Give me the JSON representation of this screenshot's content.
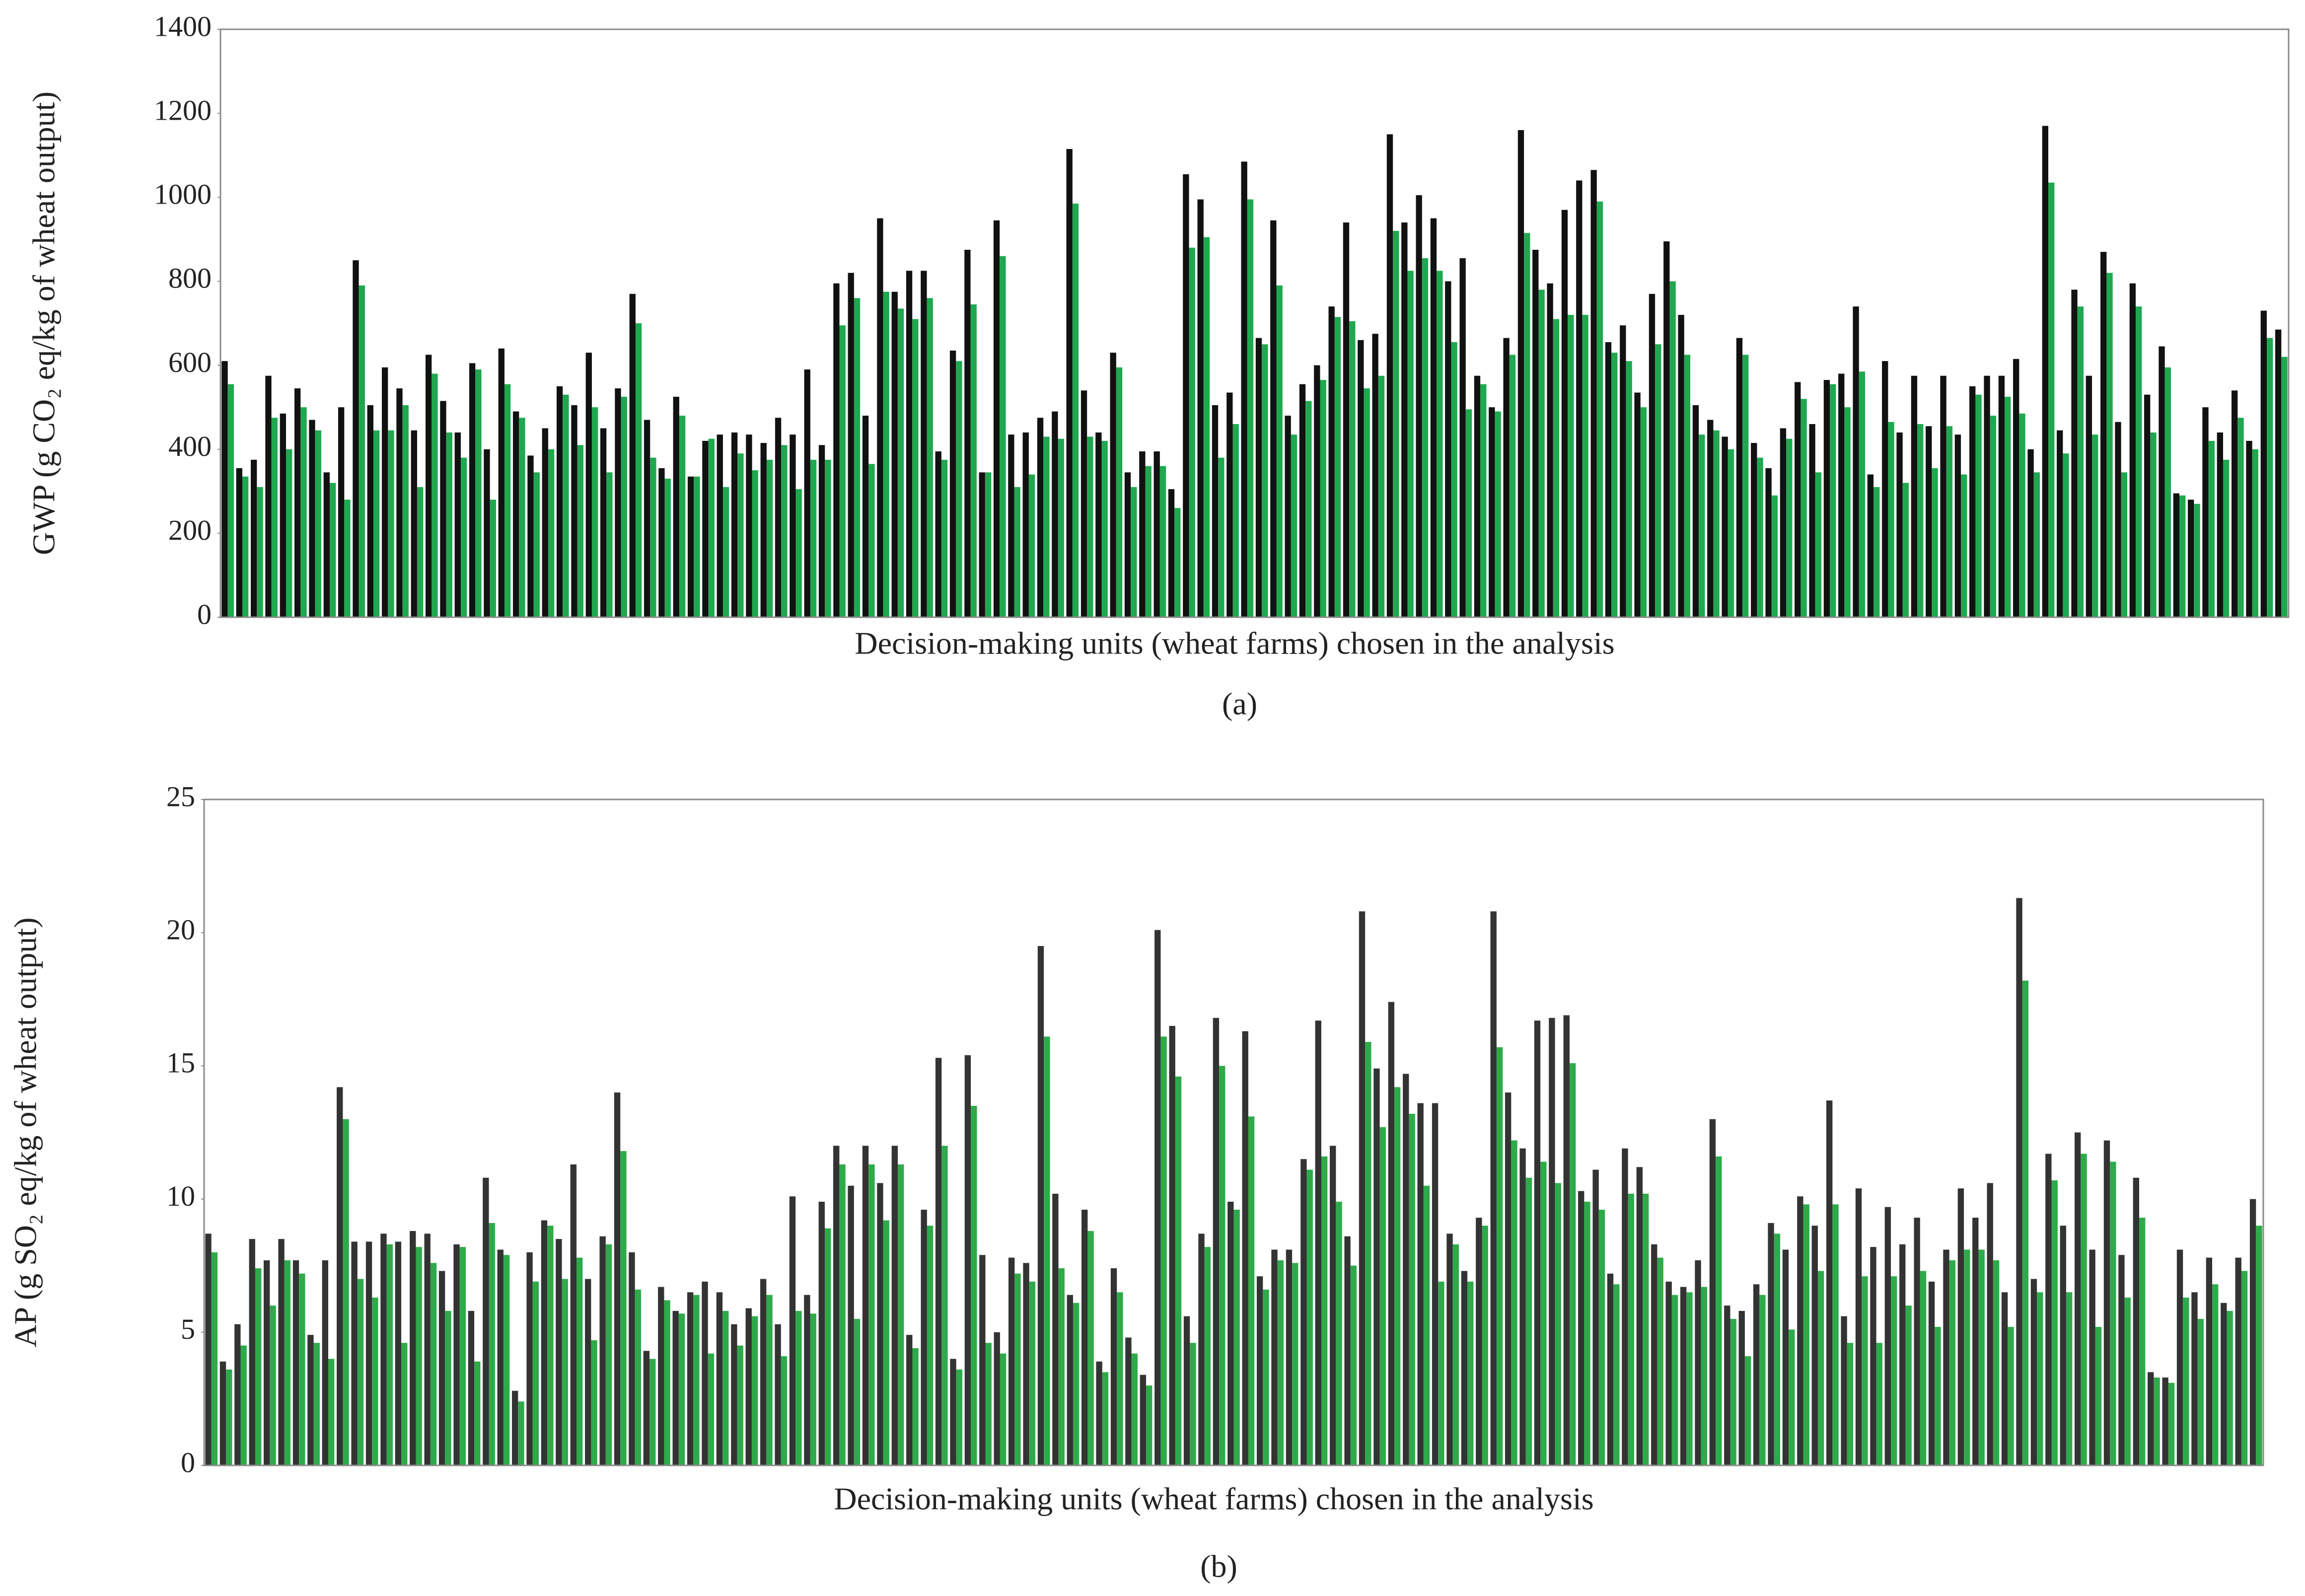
{
  "chart_data": [
    {
      "type": "bar",
      "panel_label": "(a)",
      "xlabel": "Decision-making units (wheat farms) chosen in the analysis",
      "ylabel": "GWP (g CO₂ eq/kg of wheat output)",
      "categories": [
        null,
        null,
        null,
        null,
        null,
        null,
        null,
        null,
        null,
        null,
        null,
        null,
        null,
        null,
        null,
        null,
        null,
        null,
        null,
        null,
        null,
        null,
        null,
        null,
        null,
        null,
        null,
        null,
        null,
        null,
        null,
        null,
        null,
        null,
        null,
        null,
        null,
        null,
        null,
        null,
        null,
        null,
        null,
        null,
        null,
        null,
        null,
        null,
        null,
        null,
        null,
        null,
        null,
        null,
        null,
        null,
        null,
        null,
        null,
        null,
        null,
        null,
        null,
        null,
        null,
        null,
        null,
        null,
        null,
        null,
        null,
        null,
        null,
        null,
        null,
        null,
        null,
        null,
        null,
        null,
        null,
        null,
        null,
        null,
        null,
        null,
        null,
        null,
        null,
        null,
        null,
        null,
        null,
        null,
        null,
        null,
        null,
        null,
        null,
        null,
        null,
        null,
        null,
        null,
        null,
        null,
        null,
        null,
        null,
        null,
        null,
        null,
        null,
        null,
        null,
        null,
        null,
        null,
        null,
        null,
        null,
        null,
        null,
        null,
        null,
        null,
        null,
        null,
        null,
        null,
        null,
        null,
        null,
        null,
        null,
        null,
        null,
        null,
        null,
        null,
        null,
        null
      ],
      "series": [
        {
          "color": "#111111",
          "values": [
            610,
            355,
            375,
            575,
            485,
            545,
            470,
            345,
            500,
            850,
            505,
            595,
            545,
            445,
            625,
            515,
            440,
            605,
            400,
            640,
            490,
            385,
            450,
            550,
            505,
            630,
            450,
            545,
            770,
            470,
            355,
            525,
            335,
            420,
            435,
            440,
            435,
            415,
            475,
            435,
            590,
            410,
            795,
            820,
            480,
            950,
            775,
            825,
            825,
            395,
            635,
            875,
            345,
            945,
            435,
            440,
            475,
            490,
            1115,
            540,
            440,
            630,
            345,
            395,
            395,
            305,
            1055,
            995,
            505,
            535,
            1085,
            665,
            945,
            480,
            555,
            600,
            740,
            940,
            660,
            675,
            1150,
            940,
            1005,
            950,
            800,
            855,
            575,
            500,
            665,
            1160,
            875,
            795,
            970,
            1040,
            1065,
            655,
            695,
            535,
            770,
            895,
            720,
            505,
            470,
            430,
            665,
            415,
            355,
            450,
            560,
            460,
            565,
            580,
            740,
            340,
            610,
            440,
            575,
            455,
            575,
            435,
            550,
            575,
            575,
            615,
            400,
            1170,
            445,
            780,
            575,
            870,
            465,
            795,
            530,
            645,
            295,
            280,
            500,
            440,
            540,
            420,
            730,
            685
          ]
        },
        {
          "color": "#1fa84f",
          "values": [
            555,
            335,
            310,
            475,
            400,
            500,
            445,
            320,
            280,
            790,
            445,
            445,
            505,
            310,
            580,
            440,
            380,
            590,
            280,
            555,
            475,
            345,
            400,
            530,
            410,
            500,
            345,
            525,
            700,
            380,
            330,
            480,
            335,
            425,
            310,
            390,
            350,
            375,
            410,
            305,
            375,
            375,
            695,
            760,
            365,
            775,
            735,
            710,
            760,
            375,
            610,
            745,
            345,
            860,
            310,
            340,
            430,
            425,
            985,
            430,
            420,
            595,
            310,
            360,
            360,
            260,
            880,
            905,
            380,
            460,
            995,
            650,
            790,
            435,
            515,
            565,
            715,
            705,
            545,
            575,
            920,
            825,
            855,
            825,
            655,
            495,
            555,
            490,
            625,
            915,
            780,
            710,
            720,
            720,
            990,
            630,
            610,
            500,
            650,
            800,
            625,
            435,
            445,
            400,
            625,
            380,
            290,
            425,
            520,
            345,
            555,
            500,
            585,
            310,
            465,
            320,
            460,
            355,
            455,
            340,
            530,
            480,
            525,
            485,
            345,
            1035,
            390,
            740,
            435,
            820,
            345,
            740,
            440,
            595,
            290,
            270,
            420,
            375,
            475,
            400,
            665,
            620
          ]
        }
      ],
      "ylim": [
        0,
        1400
      ],
      "yticks": [
        0,
        200,
        400,
        600,
        800,
        1000,
        1200,
        1400
      ]
    },
    {
      "type": "bar",
      "panel_label": "(b)",
      "xlabel": "Decision-making units (wheat farms) chosen in the analysis",
      "ylabel": "AP (g SO₂ eq/kg of wheat output)",
      "categories": [
        null,
        null,
        null,
        null,
        null,
        null,
        null,
        null,
        null,
        null,
        null,
        null,
        null,
        null,
        null,
        null,
        null,
        null,
        null,
        null,
        null,
        null,
        null,
        null,
        null,
        null,
        null,
        null,
        null,
        null,
        null,
        null,
        null,
        null,
        null,
        null,
        null,
        null,
        null,
        null,
        null,
        null,
        null,
        null,
        null,
        null,
        null,
        null,
        null,
        null,
        null,
        null,
        null,
        null,
        null,
        null,
        null,
        null,
        null,
        null,
        null,
        null,
        null,
        null,
        null,
        null,
        null,
        null,
        null,
        null,
        null,
        null,
        null,
        null,
        null,
        null,
        null,
        null,
        null,
        null,
        null,
        null,
        null,
        null,
        null,
        null,
        null,
        null,
        null,
        null,
        null,
        null,
        null,
        null,
        null,
        null,
        null,
        null,
        null,
        null,
        null,
        null,
        null,
        null,
        null,
        null,
        null,
        null,
        null,
        null,
        null,
        null,
        null,
        null,
        null,
        null,
        null,
        null,
        null,
        null,
        null,
        null,
        null,
        null,
        null,
        null,
        null,
        null,
        null,
        null,
        null,
        null,
        null,
        null,
        null,
        null,
        null,
        null,
        null,
        null,
        null
      ],
      "series": [
        {
          "color": "#333333",
          "values": [
            8.7,
            3.9,
            5.3,
            8.5,
            7.7,
            8.5,
            7.7,
            4.9,
            7.7,
            14.2,
            8.4,
            8.4,
            8.7,
            8.4,
            8.8,
            8.7,
            7.3,
            8.3,
            5.8,
            10.8,
            8.1,
            2.8,
            8.0,
            9.2,
            8.5,
            11.3,
            7.0,
            8.6,
            14.0,
            8.0,
            4.3,
            6.7,
            5.8,
            6.5,
            6.9,
            6.5,
            5.3,
            5.9,
            7.0,
            5.3,
            10.1,
            6.4,
            9.9,
            12.0,
            10.5,
            12.0,
            10.6,
            12.0,
            4.9,
            9.6,
            15.3,
            4.0,
            15.4,
            7.9,
            5.0,
            7.8,
            7.6,
            19.5,
            10.2,
            6.4,
            9.6,
            3.9,
            7.4,
            4.8,
            3.4,
            20.1,
            16.5,
            5.6,
            8.7,
            16.8,
            9.9,
            16.3,
            7.1,
            8.1,
            8.1,
            11.5,
            16.7,
            12.0,
            8.6,
            20.8,
            14.9,
            17.4,
            14.7,
            13.6,
            13.6,
            8.7,
            7.3,
            9.3,
            20.8,
            14.0,
            11.9,
            16.7,
            16.8,
            16.9,
            10.3,
            11.1,
            7.2,
            11.9,
            11.2,
            8.3,
            6.9,
            6.7,
            7.7,
            13.0,
            6.0,
            5.8,
            6.8,
            9.1,
            8.1,
            10.1,
            9.0,
            13.7,
            5.6,
            10.4,
            8.2,
            9.7,
            8.3,
            9.3,
            6.9,
            8.1,
            10.4,
            9.3,
            10.6,
            6.5,
            21.3,
            7.0,
            11.7,
            9.0,
            12.5,
            8.1,
            12.2,
            7.9,
            10.8,
            3.5,
            3.3,
            8.1,
            6.5,
            7.8,
            6.1,
            7.8,
            10.0
          ]
        },
        {
          "color": "#2eaa4a",
          "values": [
            8.0,
            3.6,
            4.5,
            7.4,
            6.0,
            7.7,
            7.2,
            4.6,
            4.0,
            13.0,
            7.0,
            6.3,
            8.3,
            4.6,
            8.2,
            7.6,
            5.8,
            8.2,
            3.9,
            9.1,
            7.9,
            2.4,
            6.9,
            9.0,
            7.0,
            7.8,
            4.7,
            8.3,
            11.8,
            6.6,
            4.0,
            6.2,
            5.7,
            6.4,
            4.2,
            5.8,
            4.5,
            5.6,
            6.4,
            4.1,
            5.8,
            5.7,
            8.9,
            11.3,
            5.5,
            11.3,
            9.2,
            11.3,
            4.4,
            9.0,
            12.0,
            3.6,
            13.5,
            4.6,
            4.2,
            7.2,
            6.9,
            16.1,
            7.4,
            6.1,
            8.8,
            3.5,
            6.5,
            4.2,
            3.0,
            16.1,
            14.6,
            4.6,
            8.2,
            15.0,
            9.6,
            13.1,
            6.6,
            7.7,
            7.6,
            11.1,
            11.6,
            9.9,
            7.5,
            15.9,
            12.7,
            14.2,
            13.2,
            10.5,
            6.9,
            8.3,
            6.9,
            9.0,
            15.7,
            12.2,
            10.8,
            11.4,
            10.6,
            15.1,
            9.9,
            9.6,
            6.8,
            10.2,
            10.2,
            7.8,
            6.4,
            6.5,
            6.7,
            11.6,
            5.5,
            4.1,
            6.4,
            8.7,
            5.1,
            9.8,
            7.3,
            9.8,
            4.6,
            7.1,
            4.6,
            7.1,
            6.0,
            7.3,
            5.2,
            7.7,
            8.1,
            8.1,
            7.7,
            5.2,
            18.2,
            6.5,
            10.7,
            6.5,
            11.7,
            5.2,
            11.4,
            6.3,
            9.3,
            3.3,
            3.1,
            6.3,
            5.5,
            6.8,
            5.8,
            7.3,
            9.0
          ]
        }
      ],
      "ylim": [
        0,
        25
      ],
      "yticks": [
        0,
        5,
        10,
        15,
        20,
        25
      ]
    }
  ]
}
